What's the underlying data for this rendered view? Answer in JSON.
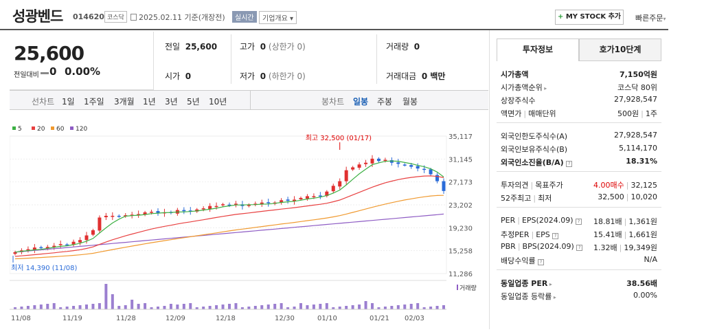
{
  "header": {
    "name": "성광벤드",
    "code": "014620",
    "market": "코스닥",
    "date": "2025.02.11 기준(개장전)",
    "realtime": "실시간",
    "company_btn": "기업개요",
    "mystock": "MY STOCK 추가",
    "mystock_plus": "+",
    "quick": "빠른주문"
  },
  "price": {
    "current": "25,600",
    "change_label": "전일대비",
    "change": "0",
    "change_pct": "0.00%"
  },
  "quote": {
    "prev_label": "전일",
    "prev": "25,600",
    "high_label": "고가",
    "high": "0",
    "high_limit": "(상한가 0)",
    "volume_label": "거래량",
    "volume": "0",
    "open_label": "시가",
    "open": "0",
    "low_label": "저가",
    "low": "0",
    "low_limit": "(하한가 0)",
    "amount_label": "거래대금",
    "amount": "0 백만"
  },
  "tabs": {
    "line_label": "선차트",
    "periods": [
      "1일",
      "1주일",
      "3개월",
      "1년",
      "3년",
      "5년",
      "10년"
    ],
    "candle_label": "봉차트",
    "candles": [
      "일봉",
      "주봉",
      "월봉"
    ],
    "selected_candle": "일봉"
  },
  "legend": [
    {
      "name": "5",
      "color": "#3cb043"
    },
    {
      "name": "20",
      "color": "#e84040"
    },
    {
      "name": "60",
      "color": "#f0992e"
    },
    {
      "name": "120",
      "color": "#8e5cc4"
    }
  ],
  "chart_data": {
    "type": "candlestick",
    "yticks": [
      "35,117",
      "31,145",
      "27,173",
      "23,202",
      "19,230",
      "15,258",
      "11,286"
    ],
    "xticks": [
      "11/08",
      "11/19",
      "11/28",
      "12/09",
      "12/18",
      "12/30",
      "01/10",
      "01/21",
      "02/03"
    ],
    "high_annot": "최고 32,500 (01/17)",
    "low_annot": "최저 14,390 (11/08)",
    "volume_label": "거래량",
    "close": [
      15000,
      15300,
      15500,
      15800,
      15800,
      15900,
      16100,
      16400,
      16300,
      16800,
      17100,
      17900,
      18800,
      21000,
      21300,
      21300,
      21200,
      21400,
      21500,
      21600,
      21900,
      22000,
      21800,
      21900,
      21800,
      22300,
      22100,
      22100,
      22400,
      22600,
      23000,
      23000,
      23300,
      23200,
      23400,
      23000,
      23200,
      23400,
      23600,
      23500,
      23600,
      24000,
      23900,
      24100,
      24400,
      24700,
      24700,
      24800,
      25500,
      26500,
      27300,
      29200,
      29700,
      30200,
      30500,
      31200,
      30800,
      31000,
      30500,
      30300,
      30100,
      29800,
      29500,
      29300,
      28500,
      27300,
      25600
    ],
    "ma120": [
      15000,
      15100,
      15200,
      15300,
      15400,
      15500,
      15600,
      15700,
      15800,
      15900,
      16000,
      16100,
      16200,
      16300,
      16400,
      16500,
      16600,
      16700,
      16800,
      16900,
      17000,
      17100,
      17200,
      17300,
      17400,
      17500,
      17600,
      17700,
      17800,
      17900,
      18000,
      18100,
      18200,
      18300,
      18400,
      18500,
      18600,
      18700,
      18800,
      18900,
      19000,
      19100,
      19200,
      19300,
      19400,
      19500,
      19600,
      19700,
      19800,
      19900,
      20000,
      20100,
      20200,
      20300,
      20400,
      20500,
      20600,
      20700,
      20800,
      20900,
      21000,
      21100,
      21200,
      21300,
      21400,
      21500,
      21600
    ]
  },
  "side": {
    "tab_invest": "투자정보",
    "tab_hoga": "호가10단계",
    "market_cap_label": "시가총액",
    "market_cap": "7,150억원",
    "cap_rank_label": "시가총액순위",
    "cap_rank": "코스닥 80위",
    "shares_label": "상장주식수",
    "shares": "27,928,547",
    "face_label": "액면가",
    "face_sep": "매매단위",
    "face": "500원",
    "unit": "1주",
    "foreign_limit_label": "외국인한도주식수(A)",
    "foreign_limit": "27,928,547",
    "foreign_hold_label": "외국인보유주식수(B)",
    "foreign_hold": "5,114,170",
    "foreign_ratio_label": "외국인소진율(B/A)",
    "foreign_ratio": "18.31%",
    "opinion_label": "투자의견",
    "target_label": "목표주가",
    "opinion": "4.00매수",
    "target": "32,125",
    "w52_label": "52주최고",
    "w52_low_label": "최저",
    "w52_high": "32,500",
    "w52_low": "10,020",
    "per_label": "PER",
    "eps_label": "EPS(2024.09)",
    "per": "18.81배",
    "eps": "1,361원",
    "eper_label": "추정PER",
    "eeps_label": "EPS",
    "eper": "15.41배",
    "eeps": "1,661원",
    "pbr_label": "PBR",
    "bps_label": "BPS(2024.09)",
    "pbr": "1.32배",
    "bps": "19,349원",
    "div_label": "배당수익률",
    "div": "N/A",
    "ind_per_label": "동일업종 PER",
    "ind_per": "38.56배",
    "ind_rate_label": "동일업종 등락률",
    "ind_rate": "0.00%"
  }
}
